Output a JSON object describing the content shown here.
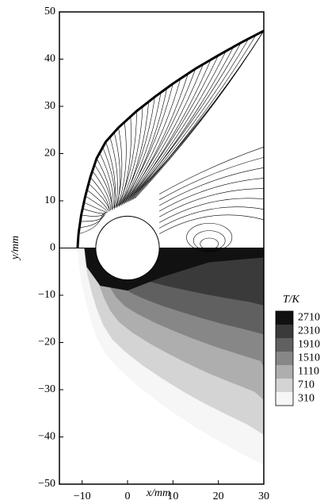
{
  "chart_data": {
    "type": "contour",
    "xlabel": "x/mm",
    "ylabel": "y/mm",
    "xlim": [
      -15,
      30
    ],
    "ylim": [
      -50,
      50
    ],
    "xticks": [
      {
        "value": -10,
        "label": "−10"
      },
      0,
      10,
      20,
      30
    ],
    "yticks": [
      {
        "value": -50,
        "label": "−50"
      },
      {
        "value": -40,
        "label": "−40"
      },
      {
        "value": -30,
        "label": "−30"
      },
      {
        "value": -20,
        "label": "−20"
      },
      {
        "value": -10,
        "label": "−10"
      },
      0,
      10,
      20,
      30,
      40,
      50
    ],
    "colorbar": {
      "title": "T/K",
      "levels": [
        2710,
        2310,
        1910,
        1510,
        1110,
        710,
        310
      ],
      "colors": [
        "#111111",
        "#3a3a3a",
        "#606060",
        "#878787",
        "#aeaeae",
        "#d4d4d4",
        "#f6f6f6"
      ]
    }
  }
}
